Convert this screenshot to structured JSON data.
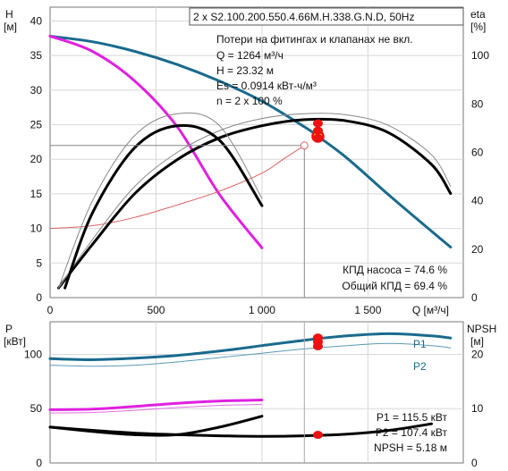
{
  "chart_data": [
    {
      "type": "line",
      "title": "2 x S2.100.200.550.4.66M.H.338.G.N.D, 50Hz",
      "xlabel": "Q [м³/ч]",
      "ylabel_left_top": "H",
      "ylabel_left_unit": "[м]",
      "ylabel_right_top": "eta",
      "ylabel_right_unit": "[%]",
      "xlim": [
        0,
        1950
      ],
      "ylim": [
        0,
        42
      ],
      "y2lim": [
        0,
        120
      ],
      "grid": true,
      "x_ticks": [
        0,
        500,
        1000,
        1500
      ],
      "x_tick_labels": [
        "0",
        "500",
        "1 000",
        "1 500"
      ],
      "y_ticks": [
        0,
        5,
        10,
        15,
        20,
        25,
        30,
        35,
        40
      ],
      "y_tick_labels": [
        "0",
        "5",
        "10",
        "15",
        "20",
        "25",
        "30",
        "35",
        "40"
      ],
      "y2_ticks": [
        0,
        20,
        40,
        60,
        80,
        100
      ],
      "y2_tick_labels": [
        "0",
        "20",
        "40",
        "60",
        "80",
        "100"
      ],
      "colors": {
        "head_two": "#1a6a8e",
        "head_single": "#e020e0",
        "eff": "#000000",
        "system": "#e06060",
        "point": "#ee1111",
        "op_fill": "#f5e000"
      },
      "info_lines": [
        "Потери на фитингах и клапанах не вкл.",
        "Q = 1264 м³/ч",
        "H = 23.32 м",
        "Es = 0.0914 кВт-ч/м³",
        "n = 2 x 100 %"
      ],
      "efficiency_labels": [
        "КПД насоса = 74.6 %",
        "Общий КПД = 69.4 %"
      ],
      "series": [
        {
          "key": "head_two",
          "x": [
            0,
            200,
            400,
            600,
            800,
            1000,
            1200,
            1264,
            1400,
            1600,
            1800,
            1890
          ],
          "y": [
            37.8,
            37.0,
            35.6,
            33.7,
            31.3,
            28.4,
            24.7,
            23.32,
            20.2,
            14.8,
            9.6,
            7.3
          ]
        },
        {
          "key": "head_single",
          "x": [
            0,
            200,
            400,
            600,
            800,
            1000
          ],
          "y": [
            37.8,
            35.6,
            31.3,
            24.7,
            14.9,
            7.2
          ]
        },
        {
          "key": "system",
          "x": [
            0,
            200,
            400,
            600,
            800,
            1000,
            1100,
            1200
          ],
          "y": [
            10,
            10.4,
            11.6,
            13.4,
            15.4,
            18.0,
            20.0,
            22.0
          ]
        },
        {
          "key": "eff_two_pump",
          "x": [
            40,
            200,
            400,
            600,
            800,
            1000,
            1200,
            1400,
            1600,
            1800,
            1890
          ],
          "y": [
            4,
            22,
            43,
            57,
            66,
            71,
            73.5,
            73,
            68,
            55,
            43
          ]
        },
        {
          "key": "eff_two_total",
          "x": [
            40,
            200,
            400,
            600,
            800,
            1000,
            1200,
            1400,
            1600,
            1800,
            1890
          ],
          "y": [
            4,
            24,
            46,
            60,
            69,
            74,
            76,
            75.5,
            71,
            59,
            46
          ]
        },
        {
          "key": "eff_single_pump",
          "x": [
            70,
            200,
            400,
            600,
            800,
            1000
          ],
          "y": [
            4,
            35,
            62,
            71,
            65,
            38
          ]
        },
        {
          "key": "eff_single_total",
          "x": [
            40,
            200,
            400,
            600,
            800,
            1000
          ],
          "y": [
            4,
            40,
            67,
            76,
            71,
            41
          ]
        }
      ],
      "operating_point": {
        "x": 1264,
        "y": 23.32
      },
      "marks": [
        {
          "x": 1264,
          "y2": 72
        },
        {
          "x": 1264,
          "y2": 69
        },
        {
          "x": 1264,
          "y2": 66
        }
      ]
    },
    {
      "type": "line",
      "xlim": [
        0,
        1950
      ],
      "ylabel_left_top": "P",
      "ylabel_left_unit": "[кВт]",
      "ylabel_right_top": "NPSH",
      "ylabel_right_unit": "[м]",
      "ylim": [
        0,
        130
      ],
      "y2lim": [
        0,
        26
      ],
      "grid": true,
      "y_ticks": [
        0,
        50,
        100
      ],
      "y_tick_labels": [
        "0",
        "50",
        "100"
      ],
      "y2_ticks": [
        0,
        10,
        20
      ],
      "y2_tick_labels": [
        "0",
        "10",
        "20"
      ],
      "legend": [
        "P1",
        "P2"
      ],
      "info_lines": [
        "P1 = 115.5 кВт",
        "P2 = 107.4 кВт",
        "NPSH = 5.18 м"
      ],
      "series": [
        {
          "key": "P1_two",
          "x": [
            0,
            200,
            400,
            600,
            800,
            1000,
            1200,
            1400,
            1600,
            1800,
            1890
          ],
          "y": [
            96,
            95,
            96.5,
            99,
            103,
            108,
            113,
            117,
            119,
            117,
            115
          ]
        },
        {
          "key": "P2_two",
          "x": [
            0,
            200,
            400,
            600,
            800,
            1000,
            1200,
            1400,
            1600,
            1800,
            1890
          ],
          "y": [
            90,
            89,
            90,
            93,
            97,
            101,
            105,
            108,
            110,
            108,
            106
          ]
        },
        {
          "key": "P1_single",
          "x": [
            0,
            200,
            400,
            600,
            800,
            1000
          ],
          "y": [
            49,
            49.5,
            52,
            55,
            57,
            58
          ]
        },
        {
          "key": "P2_single",
          "x": [
            0,
            200,
            400,
            600,
            800,
            1000
          ],
          "y": [
            46,
            46.5,
            48.5,
            51,
            53,
            54
          ]
        },
        {
          "key": "NPSH_two",
          "y2": true,
          "x": [
            0,
            200,
            400,
            600,
            800,
            1000,
            1200,
            1400,
            1600,
            1800
          ],
          "y": [
            6.6,
            6.0,
            5.5,
            5.2,
            5.0,
            4.9,
            5.0,
            5.3,
            6.0,
            7.2
          ]
        },
        {
          "key": "NPSH_single",
          "y2": true,
          "x": [
            0,
            200,
            400,
            600,
            800,
            1000
          ],
          "y": [
            6.6,
            5.8,
            5.2,
            5.2,
            6.6,
            8.6
          ]
        }
      ],
      "marks": [
        {
          "x": 1264,
          "y": 115.5
        },
        {
          "x": 1264,
          "y": 111.5
        },
        {
          "x": 1264,
          "y": 107.4
        },
        {
          "x": 1264,
          "y2": 5.18
        }
      ]
    }
  ]
}
